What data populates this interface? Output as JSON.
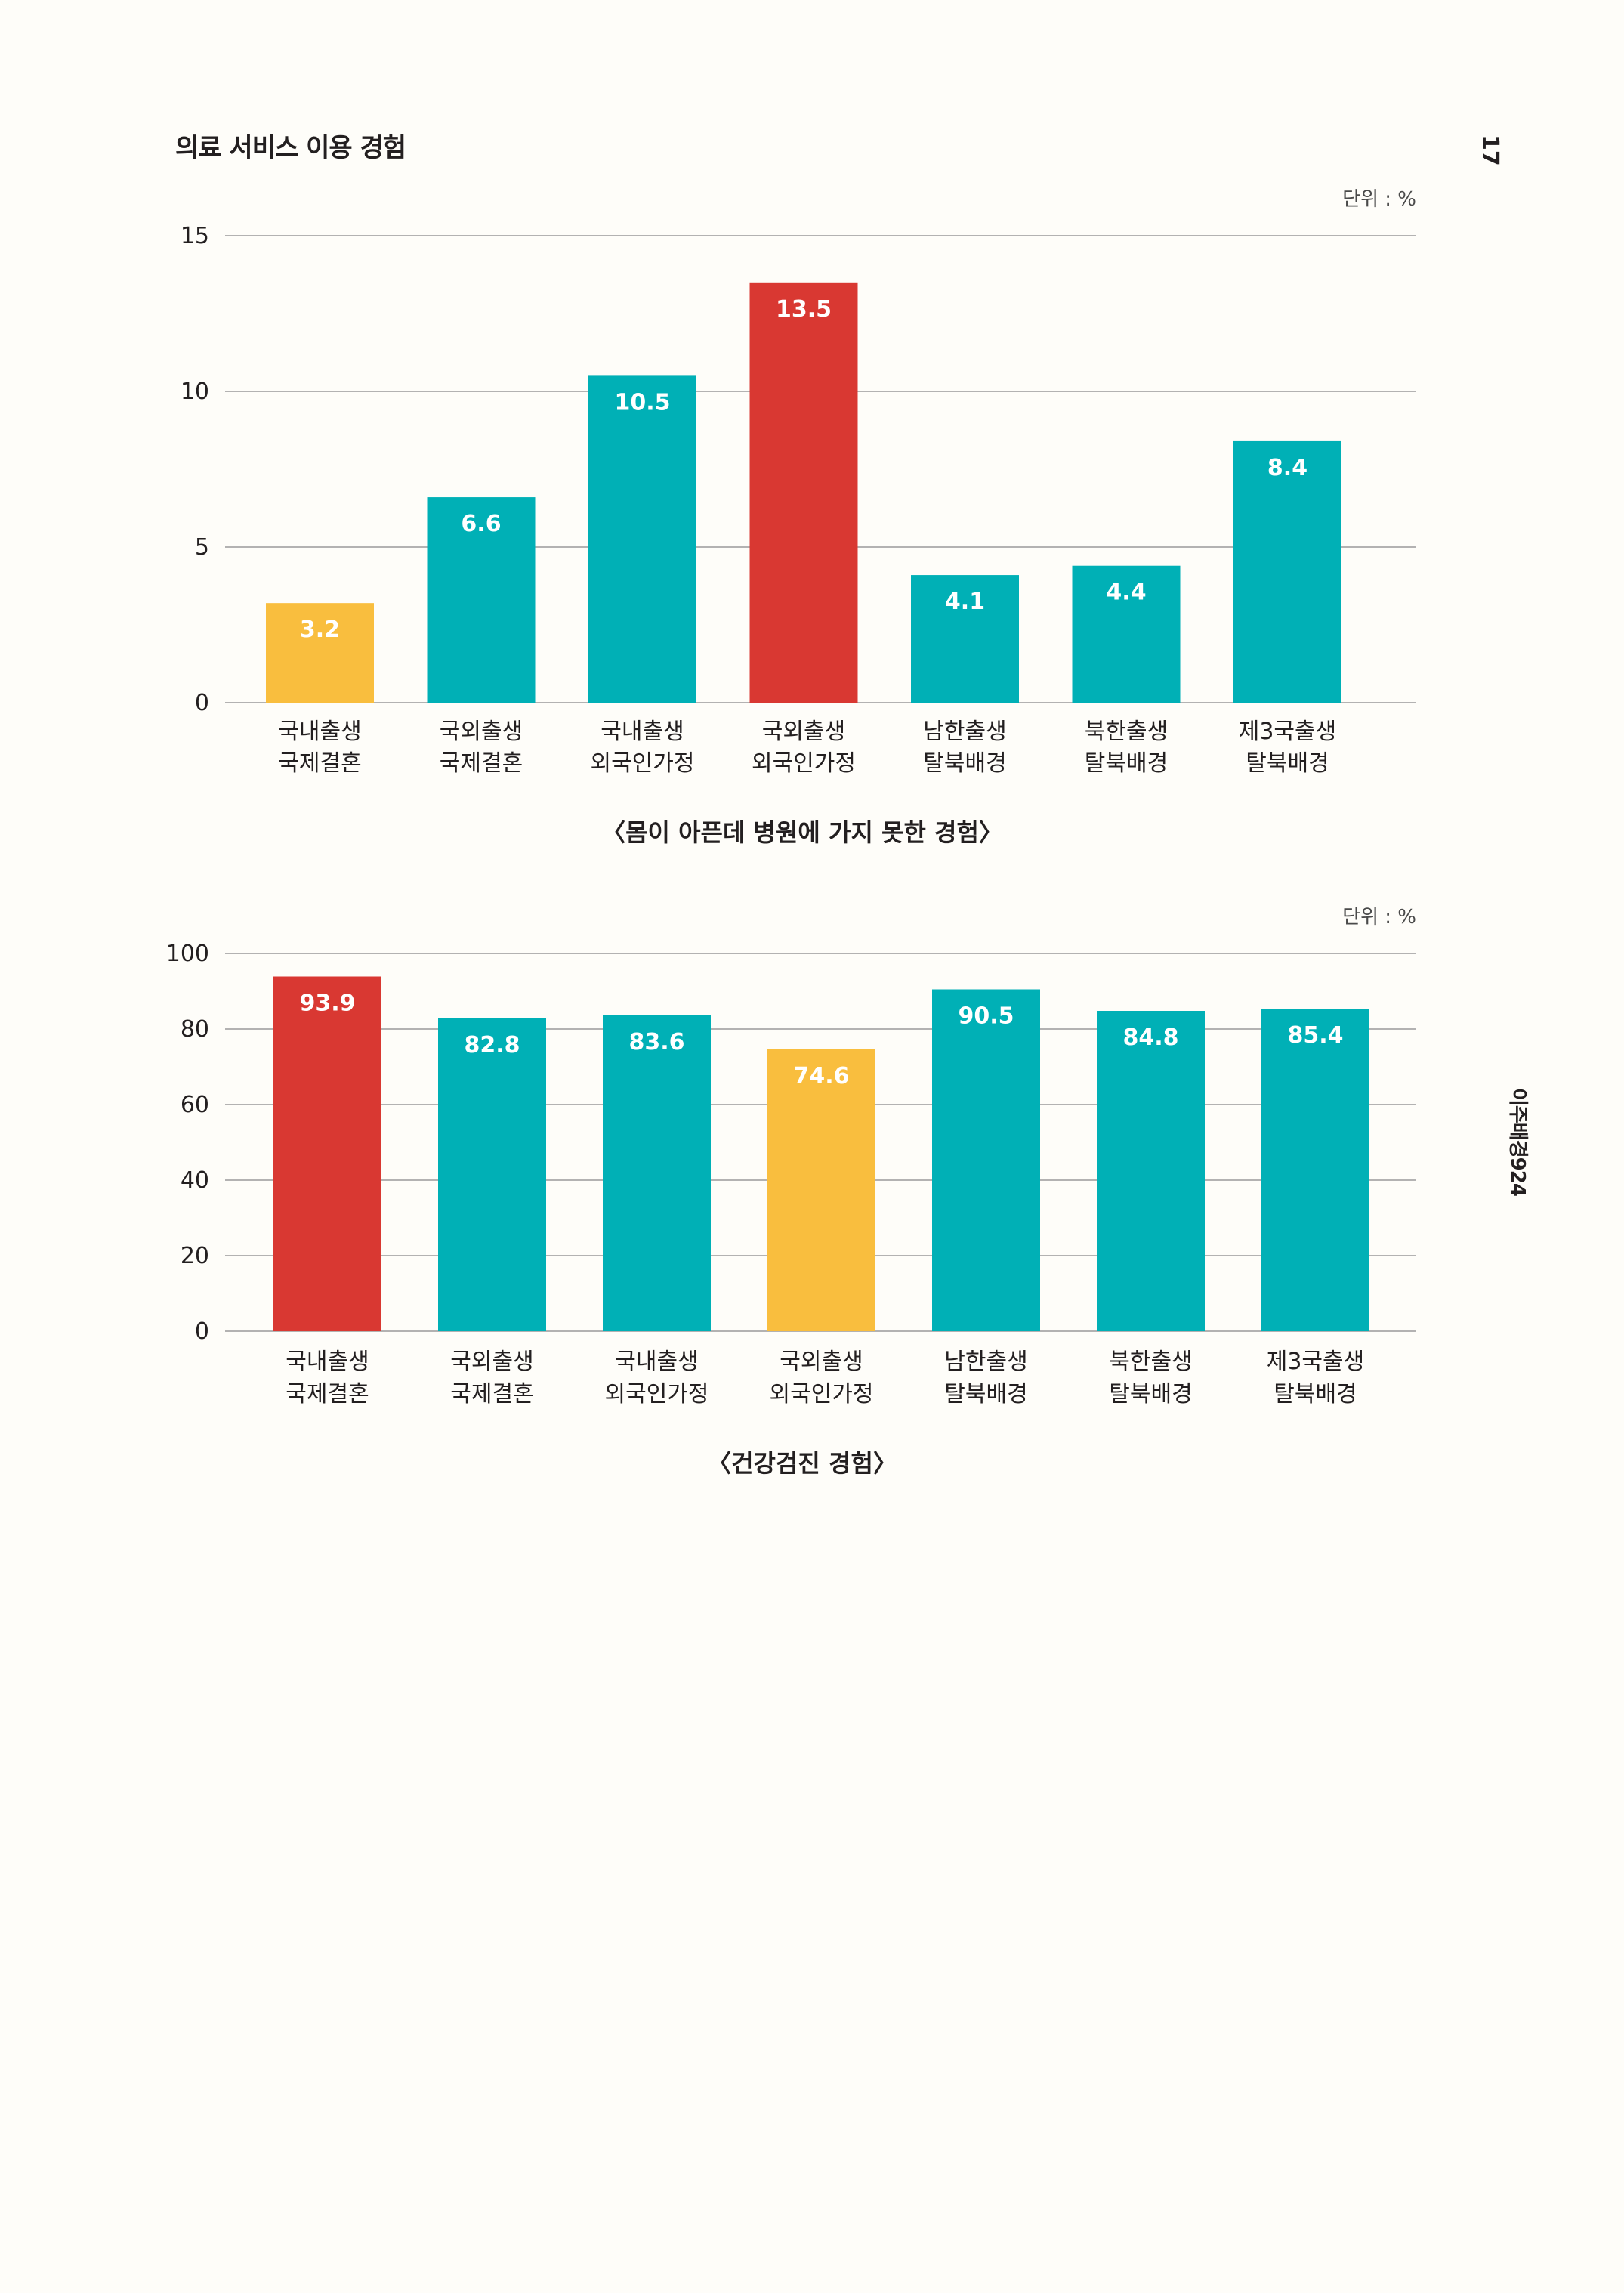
{
  "page": {
    "section_title": "의료 서비스 이용 경험",
    "page_number": "17",
    "side_label": "이주배경924"
  },
  "colors": {
    "teal": "#00b0b6",
    "red": "#d93832",
    "yellow": "#f9be3e"
  },
  "chart_data": [
    {
      "type": "bar",
      "title": "〈몸이 아픈데 병원에 가지 못한 경험〉",
      "unit": "단위 : %",
      "categories": [
        [
          "국내출생",
          "국제결혼"
        ],
        [
          "국외출생",
          "국제결혼"
        ],
        [
          "국내출생",
          "외국인가정"
        ],
        [
          "국외출생",
          "외국인가정"
        ],
        [
          "남한출생",
          "탈북배경"
        ],
        [
          "북한출생",
          "탈북배경"
        ],
        [
          "제3국출생",
          "탈북배경"
        ]
      ],
      "values": [
        3.2,
        6.6,
        10.5,
        13.5,
        4.1,
        4.4,
        8.4
      ],
      "bar_colors": [
        "yellow",
        "teal",
        "teal",
        "red",
        "teal",
        "teal",
        "teal"
      ],
      "value_labels": [
        "3.2",
        "6.6",
        "10.5",
        "13.5",
        "4.1",
        "4.4",
        "8.4"
      ],
      "ylim": [
        0,
        15
      ],
      "yticks": [
        0,
        5,
        10,
        15
      ],
      "grid": true
    },
    {
      "type": "bar",
      "title": "〈건강검진 경험〉",
      "unit": "단위 : %",
      "categories": [
        [
          "국내출생",
          "국제결혼"
        ],
        [
          "국외출생",
          "국제결혼"
        ],
        [
          "국내출생",
          "외국인가정"
        ],
        [
          "국외출생",
          "외국인가정"
        ],
        [
          "남한출생",
          "탈북배경"
        ],
        [
          "북한출생",
          "탈북배경"
        ],
        [
          "제3국출생",
          "탈북배경"
        ]
      ],
      "values": [
        93.9,
        82.8,
        83.6,
        74.6,
        90.5,
        84.8,
        85.4
      ],
      "bar_colors": [
        "red",
        "teal",
        "teal",
        "yellow",
        "teal",
        "teal",
        "teal"
      ],
      "value_labels": [
        "93.9",
        "82.8",
        "83.6",
        "74.6",
        "90.5",
        "84.8",
        "85.4"
      ],
      "ylim": [
        0,
        100
      ],
      "yticks": [
        0,
        20,
        40,
        60,
        80,
        100
      ],
      "grid": true
    }
  ]
}
